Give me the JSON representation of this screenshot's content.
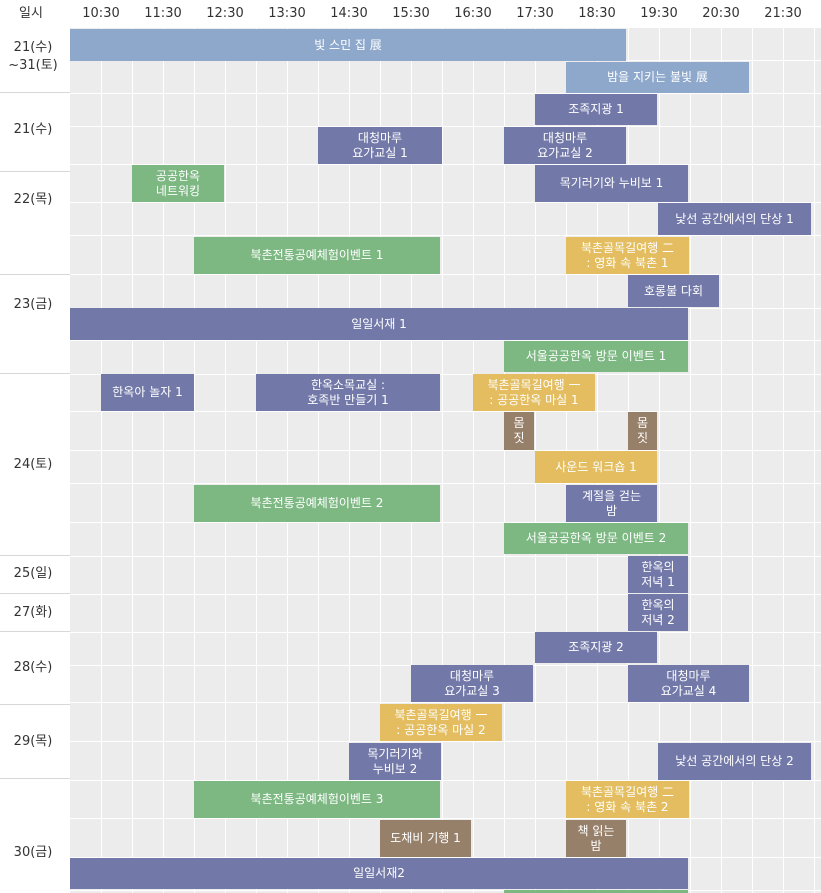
{
  "header": {
    "date_col": "일시",
    "times": [
      "10:30",
      "11:30",
      "12:30",
      "13:30",
      "14:30",
      "15:30",
      "16:30",
      "17:30",
      "18:30",
      "19:30",
      "20:30",
      "21:30"
    ]
  },
  "days": [
    {
      "label": "21(수)\n~31(토)"
    },
    {
      "label": "21(수)"
    },
    {
      "label": "22(목)"
    },
    {
      "label": "23(금)"
    },
    {
      "label": "24(토)"
    },
    {
      "label": "25(일)"
    },
    {
      "label": "27(화)"
    },
    {
      "label": "28(수)"
    },
    {
      "label": "29(목)"
    },
    {
      "label": "30(금)"
    }
  ],
  "events": [
    {
      "text": "빛 스민 집 展",
      "color": "blue"
    },
    {
      "text": "밤을 지키는 불빛 展",
      "color": "blue"
    },
    {
      "text": "조족지광 1",
      "color": "navy"
    },
    {
      "text": "대청마루\n요가교실 1",
      "color": "navy"
    },
    {
      "text": "대청마루\n요가교실 2",
      "color": "navy"
    },
    {
      "text": "공공한옥\n네트워킹",
      "color": "green"
    },
    {
      "text": "목기러기와 누비보 1",
      "color": "navy"
    },
    {
      "text": "낯선 공간에서의 단상 1",
      "color": "navy"
    },
    {
      "text": "북촌전통공예체험이벤트 1",
      "color": "green"
    },
    {
      "text": "북촌골목길여행 二\n: 영화 속 북촌 1",
      "color": "gold"
    },
    {
      "text": "호롱불 다회",
      "color": "navy"
    },
    {
      "text": "일일서재 1",
      "color": "navy"
    },
    {
      "text": "서울공공한옥 방문 이벤트 1",
      "color": "green"
    },
    {
      "text": "한옥아 놀자 1",
      "color": "navy"
    },
    {
      "text": "한옥소목교실 :\n호족반 만들기 1",
      "color": "navy"
    },
    {
      "text": "북촌골목길여행 一\n: 공공한옥 마실 1",
      "color": "gold"
    },
    {
      "text": "몸\n짓",
      "color": "brown"
    },
    {
      "text": "몸\n짓",
      "color": "brown"
    },
    {
      "text": "사운드 워크숍 1",
      "color": "gold"
    },
    {
      "text": "북촌전통공예체험이벤트 2",
      "color": "green"
    },
    {
      "text": "계절을 걷는\n밤",
      "color": "navy"
    },
    {
      "text": "서울공공한옥 방문 이벤트 2",
      "color": "green"
    },
    {
      "text": "한옥의\n저녁 1",
      "color": "navy"
    },
    {
      "text": "한옥의\n저녁 2",
      "color": "navy"
    },
    {
      "text": "조족지광 2",
      "color": "navy"
    },
    {
      "text": "대청마루\n요가교실 3",
      "color": "navy"
    },
    {
      "text": "대청마루\n요가교실 4",
      "color": "navy"
    },
    {
      "text": "북촌골목길여행 一\n: 공공한옥 마실 2",
      "color": "gold"
    },
    {
      "text": "목기러기와\n누비보 2",
      "color": "navy"
    },
    {
      "text": "낯선 공간에서의 단상 2",
      "color": "navy"
    },
    {
      "text": "북촌전통공예체험이벤트 3",
      "color": "green"
    },
    {
      "text": "북촌골목길여행 二\n: 영화 속 북촌 2",
      "color": "gold"
    },
    {
      "text": "도채비 기행 1",
      "color": "brown"
    },
    {
      "text": "책 읽는\n밤",
      "color": "brown"
    },
    {
      "text": "일일서재2",
      "color": "navy"
    }
  ],
  "colors": {
    "navy": "#7279a8",
    "blue": "#8ea8cc",
    "green": "#7db883",
    "gold": "#e3bd5f",
    "brown": "#97806a",
    "grid_bg": "#ececec"
  }
}
